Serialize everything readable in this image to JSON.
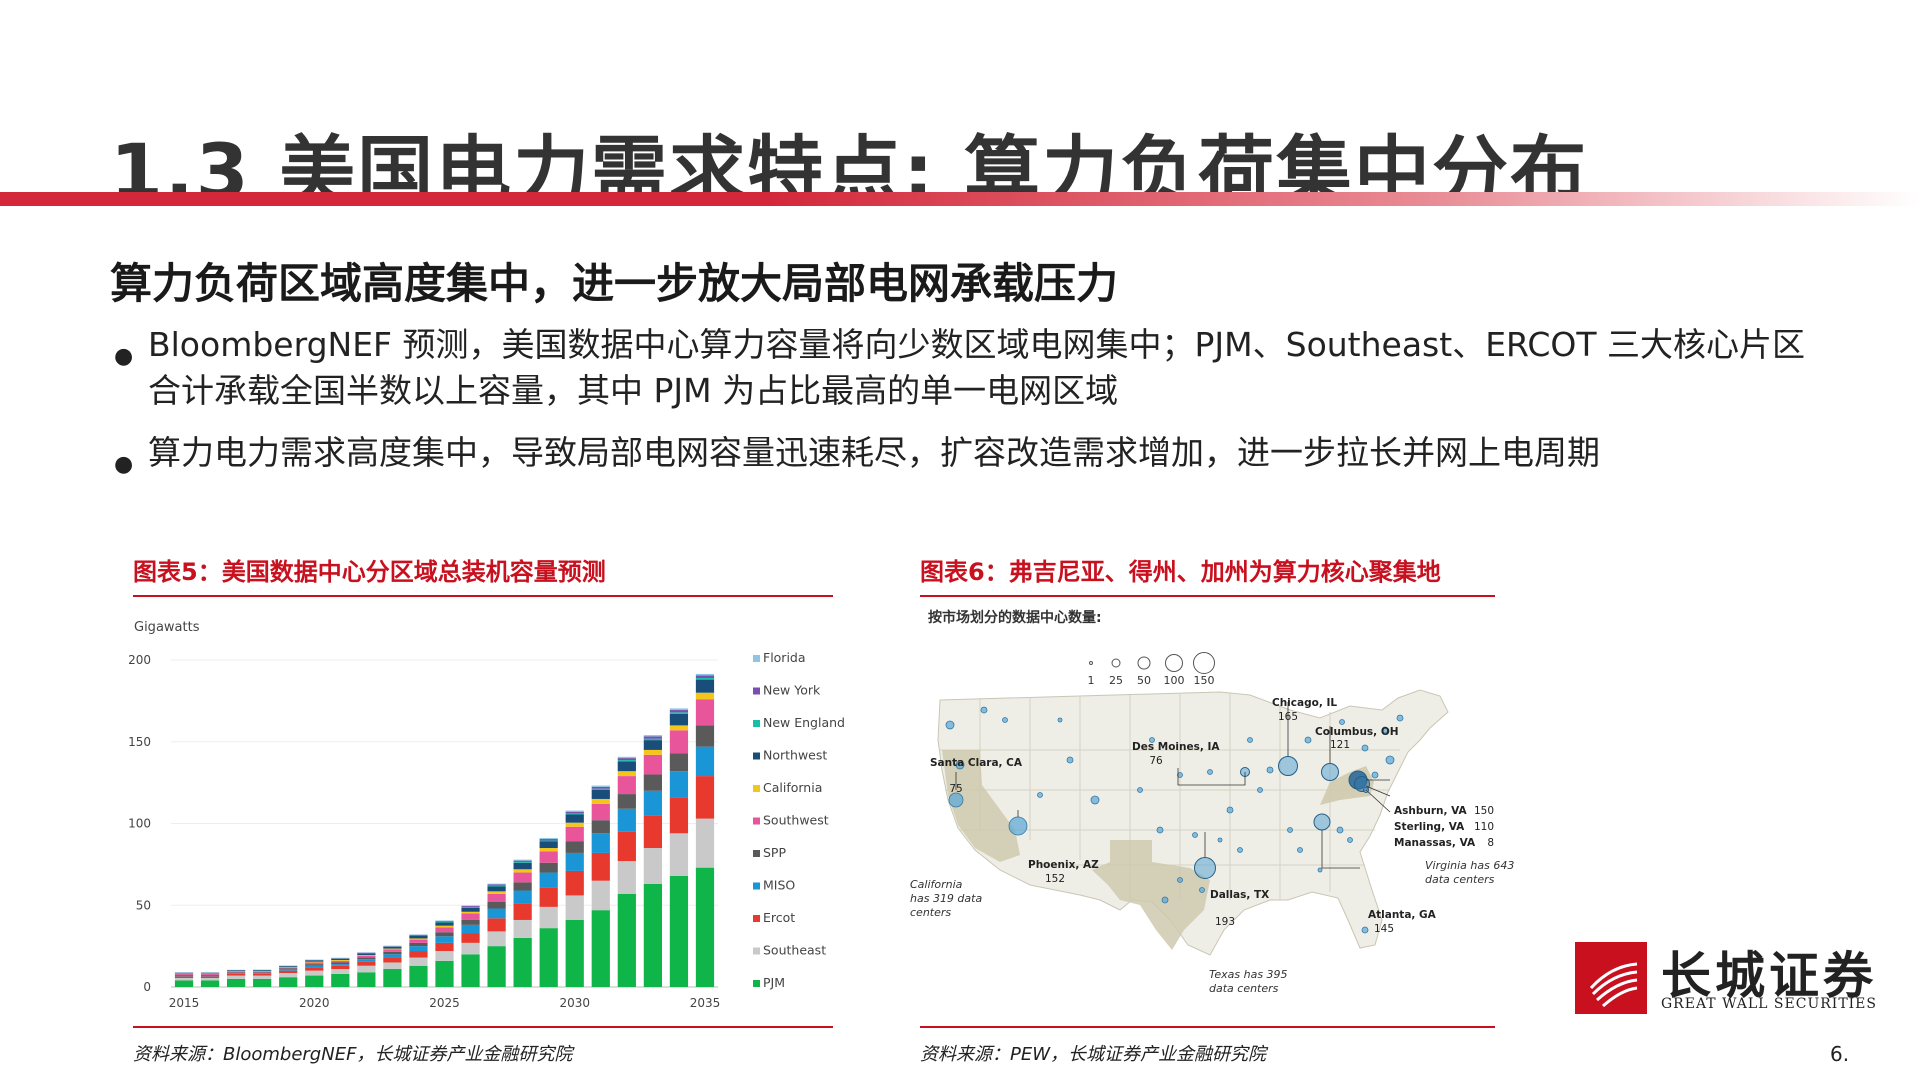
{
  "page": {
    "title": "1.3 美国电力需求特点: 算力负荷集中分布",
    "subtitle": "算力负荷区域高度集中，进一步放大局部电网承载压力",
    "bullets": [
      "BloombergNEF 预测，美国数据中心算力容量将向少数区域电网集中；PJM、Southeast、ERCOT 三大核心片区合计承载全国半数以上容量，其中 PJM 为占比最高的单一电网区域",
      "算力电力需求高度集中，导致局部电网容量迅速耗尽，扩容改造需求增加，进一步拉长并网上电周期"
    ],
    "page_number": "6."
  },
  "figure5": {
    "title": "图表5：美国数据中心分区域总装机容量预测",
    "source": "资料来源：BloombergNEF，长城证券产业金融研究院"
  },
  "figure6": {
    "title": "图表6：弗吉尼亚、得州、加州为算力核心聚集地",
    "source": "资料来源：PEW，长城证券产业金融研究院",
    "map_heading": "按市场划分的数据中心数量:",
    "size_legend": [
      "1",
      "25",
      "50",
      "100",
      "150"
    ],
    "labels": [
      {
        "name": "Chicago, IL",
        "value": "165"
      },
      {
        "name": "Columbus, OH",
        "value": "121"
      },
      {
        "name": "Des Moines, IA",
        "value": "76"
      },
      {
        "name": "Santa Clara, CA",
        "value": "75"
      },
      {
        "name": "Phoenix, AZ",
        "value": "152"
      },
      {
        "name": "Dallas, TX",
        "value": "193"
      },
      {
        "name": "Atlanta, GA",
        "value": "145"
      },
      {
        "name": "Ashburn, VA",
        "value": "150"
      },
      {
        "name": "Sterling, VA",
        "value": "110"
      },
      {
        "name": "Manassas, VA",
        "value": "8"
      }
    ],
    "notes": {
      "california": "California has 319 data centers",
      "texas": "Texas has 395 data centers",
      "virginia": "Virginia has 643 data centers"
    }
  },
  "logo": {
    "cn": "长城证券",
    "en": "GREAT WALL SECURITIES"
  },
  "colors": {
    "accent": "#c8101f",
    "map_land": "#efeee6",
    "map_highlight": "#cfc9ae",
    "bubble": "#5aa6d6"
  },
  "chart_data": {
    "type": "bar",
    "stacked": true,
    "ylabel": "Gigawatts",
    "ylim": [
      0,
      200
    ],
    "yticks": [
      0,
      50,
      100,
      150,
      200
    ],
    "xtick_labels": [
      "2015",
      "2020",
      "2025",
      "2030",
      "2035"
    ],
    "categories": [
      "2015",
      "2016",
      "2017",
      "2018",
      "2019",
      "2020",
      "2021",
      "2022",
      "2023",
      "2024",
      "2025",
      "2026",
      "2027",
      "2028",
      "2029",
      "2030",
      "2031",
      "2032",
      "2033",
      "2034",
      "2035"
    ],
    "legend_position": "right",
    "series": [
      {
        "name": "PJM",
        "color": "#10b54a",
        "values": [
          4,
          4,
          5,
          5,
          6,
          7,
          8,
          9,
          11,
          13,
          16,
          20,
          25,
          30,
          36,
          41,
          47,
          57,
          63,
          68,
          73
        ]
      },
      {
        "name": "Southeast",
        "color": "#c9c9c9",
        "values": [
          1.5,
          1.5,
          2,
          2,
          2.5,
          3,
          3,
          4,
          4,
          5,
          6,
          7,
          9,
          11,
          13,
          15,
          18,
          20,
          22,
          26,
          30
        ]
      },
      {
        "name": "Ercot",
        "color": "#e8392f",
        "values": [
          1,
          1,
          1,
          1,
          1.5,
          2,
          2,
          2.5,
          3,
          4,
          5,
          6,
          8,
          10,
          12,
          15,
          17,
          18,
          20,
          22,
          26
        ]
      },
      {
        "name": "MISO",
        "color": "#1a96d6",
        "values": [
          0.5,
          0.5,
          0.5,
          0.5,
          1,
          1,
          1,
          1.5,
          2,
          3,
          4,
          5,
          6,
          8,
          9,
          11,
          12,
          14,
          15,
          16,
          18
        ]
      },
      {
        "name": "SPP",
        "color": "#5a5a5a",
        "values": [
          0.5,
          0.5,
          0.5,
          0.5,
          0.5,
          1,
          1,
          1,
          1.5,
          2,
          2.5,
          3,
          4,
          5,
          6,
          7,
          8,
          9,
          10,
          11,
          13
        ]
      },
      {
        "name": "Southwest",
        "color": "#e9559b",
        "values": [
          0.5,
          0.5,
          0.5,
          0.5,
          0.5,
          1,
          1,
          1,
          1.5,
          2,
          3,
          4,
          5,
          6,
          7,
          9,
          10,
          11,
          12,
          14,
          16
        ]
      },
      {
        "name": "California",
        "color": "#f5c519",
        "values": [
          0.3,
          0.3,
          0.3,
          0.3,
          0.3,
          0.5,
          0.5,
          0.5,
          0.5,
          0.7,
          1,
          1,
          1.5,
          2,
          2,
          2.5,
          3,
          3,
          3,
          3,
          4
        ]
      },
      {
        "name": "Northwest",
        "color": "#1a4e7a",
        "values": [
          0.4,
          0.4,
          0.4,
          0.5,
          0.5,
          0.7,
          0.8,
          1,
          1,
          1.5,
          2,
          2.5,
          3,
          4,
          4,
          5,
          5.5,
          6,
          6,
          7,
          8
        ]
      },
      {
        "name": "New England",
        "color": "#16bfa6",
        "values": [
          0.1,
          0.1,
          0.1,
          0.1,
          0.1,
          0.2,
          0.2,
          0.2,
          0.2,
          0.3,
          0.3,
          0.4,
          0.5,
          0.5,
          0.6,
          0.7,
          0.8,
          0.8,
          0.9,
          1,
          1
        ]
      },
      {
        "name": "New York",
        "color": "#7a4fae",
        "values": [
          0.1,
          0.1,
          0.1,
          0.1,
          0.1,
          0.2,
          0.2,
          0.3,
          0.3,
          0.4,
          0.5,
          0.6,
          0.7,
          0.8,
          0.9,
          1,
          1.1,
          1.2,
          1.3,
          1.4,
          1.5
        ]
      },
      {
        "name": "Florida",
        "color": "#8ec5e6",
        "values": [
          0.1,
          0.1,
          0.1,
          0.1,
          0.1,
          0.2,
          0.2,
          0.2,
          0.3,
          0.3,
          0.4,
          0.4,
          0.5,
          0.6,
          0.6,
          0.7,
          0.8,
          0.8,
          0.9,
          1,
          1
        ]
      }
    ]
  }
}
